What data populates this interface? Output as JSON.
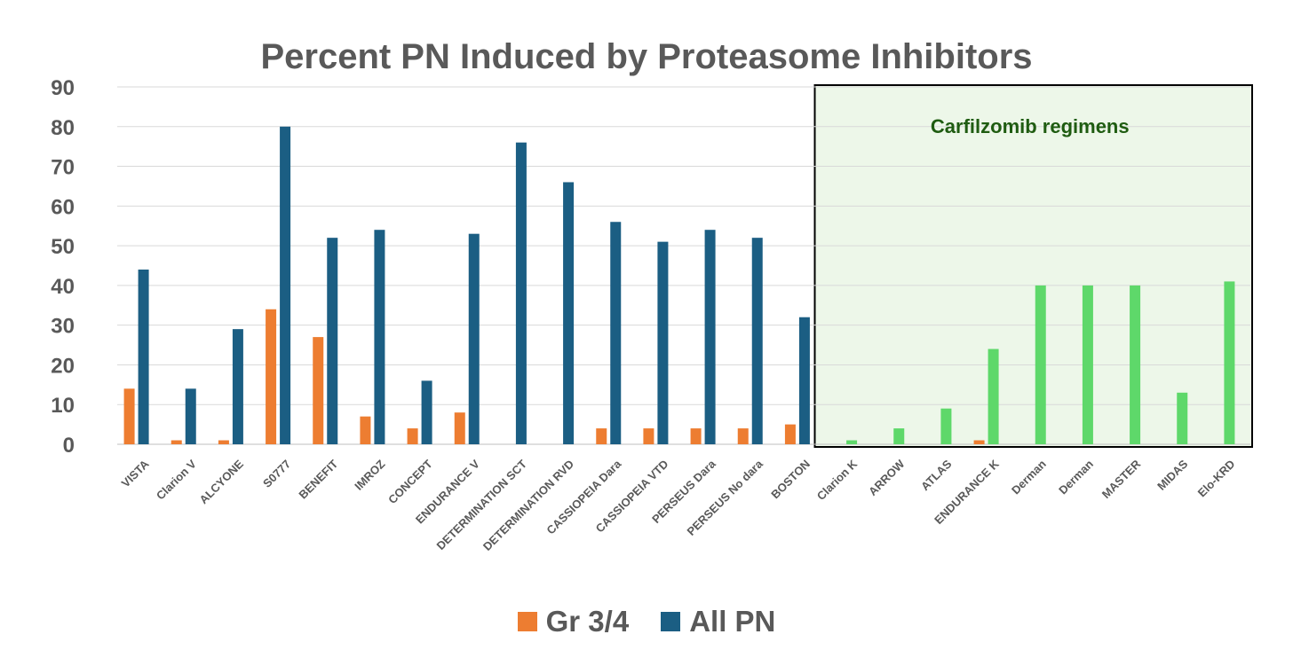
{
  "chart_data": {
    "type": "bar",
    "title": "Percent PN Induced by Proteasome Inhibitors",
    "ylim": [
      0,
      90
    ],
    "yticks": [
      0,
      10,
      20,
      30,
      40,
      50,
      60,
      70,
      80,
      90
    ],
    "grid": true,
    "legend_position": "bottom",
    "categories": [
      "VISTA",
      "Clarion V",
      "ALCYONE",
      "S0777",
      "BENEFIT",
      "IMROZ",
      "CONCEPT",
      "ENDURANCE V",
      "DETERMINATION SCT",
      "DETERMINATION RVD",
      "CASSIOPEIA Dara",
      "CASSIOPEIA VTD",
      "PERSEUS Dara",
      "PERSEUS No dara",
      "BOSTON",
      "Clarion K",
      "ARROW",
      "ATLAS",
      "ENDURANCE K",
      "Derman",
      "Derman",
      "MASTER",
      "MIDAS",
      "Elo-KRD"
    ],
    "series": [
      {
        "name": "Gr 3/4",
        "color": "#ED7D31",
        "values": [
          14,
          1,
          1,
          34,
          27,
          7,
          4,
          8,
          null,
          null,
          4,
          4,
          4,
          4,
          5,
          null,
          null,
          null,
          1,
          null,
          null,
          null,
          null,
          null
        ]
      },
      {
        "name": "All PN",
        "color": "#1B5E83",
        "carfilzomib_color": "#5ED86A",
        "values": [
          44,
          14,
          29,
          80,
          52,
          54,
          16,
          53,
          76,
          66,
          56,
          51,
          54,
          52,
          32,
          1,
          4,
          9,
          24,
          40,
          40,
          40,
          13,
          41
        ]
      }
    ],
    "annotation": {
      "label": "Carfilzomib regimens",
      "first_category": "Clarion K",
      "last_category": "Elo-KRD",
      "fill": "#EDF7E9",
      "label_color": "#1F5C11"
    }
  }
}
